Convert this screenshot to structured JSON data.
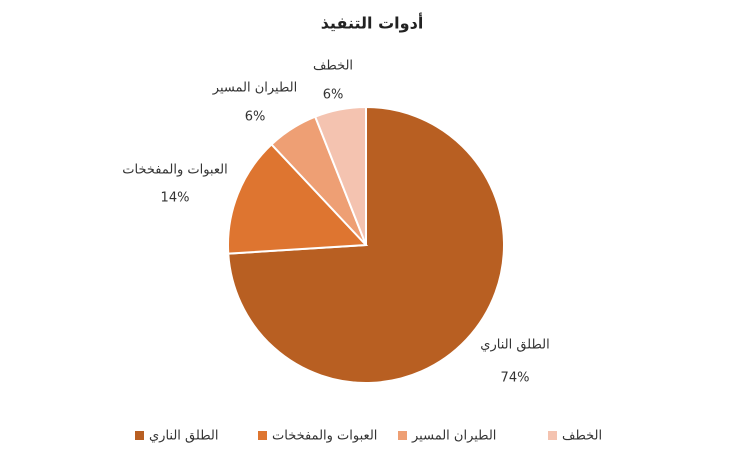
{
  "chart_data": {
    "type": "pie",
    "title": "أدوات التنفيذ",
    "categories": [
      "الطلق الناري",
      "العبوات والمفخخات",
      "الطيران المسير",
      "الخطف"
    ],
    "values": [
      74,
      14,
      6,
      6
    ],
    "value_labels": [
      "74%",
      "14%",
      "6%",
      "6%"
    ],
    "colors": [
      "#b85f22",
      "#de7530",
      "#ee9f74",
      "#f4c3b0"
    ],
    "legend": "bottom"
  }
}
